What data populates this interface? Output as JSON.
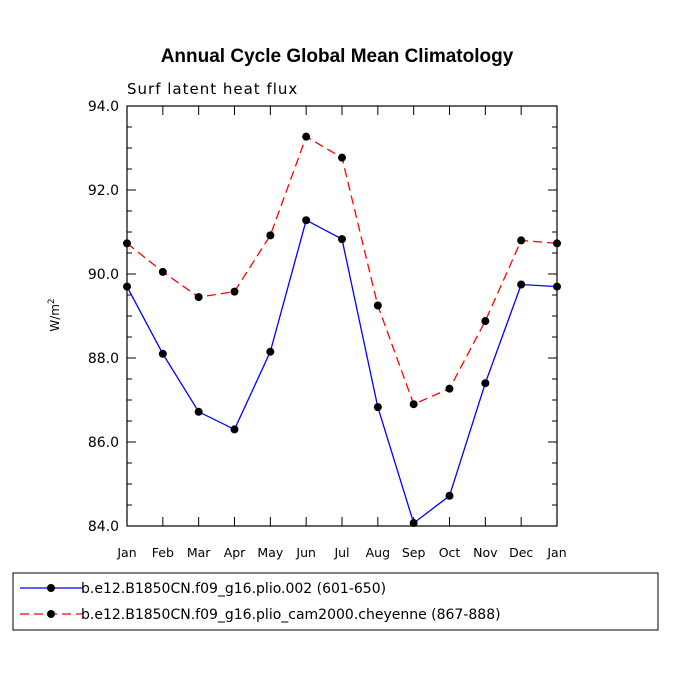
{
  "chart_data": {
    "type": "line",
    "title": "Annual Cycle Global Mean Climatology",
    "subtitle": "Surf latent heat flux",
    "ylabel": "W/m",
    "ylabel_exponent": "2",
    "xlabel": "",
    "categories": [
      "Jan",
      "Feb",
      "Mar",
      "Apr",
      "May",
      "Jun",
      "Jul",
      "Aug",
      "Sep",
      "Oct",
      "Nov",
      "Dec",
      "Jan"
    ],
    "ylim": [
      84.0,
      94.0
    ],
    "yticks": [
      "84.0",
      "86.0",
      "88.0",
      "90.0",
      "92.0",
      "94.0"
    ],
    "legend_position": "bottom",
    "series": [
      {
        "name": "b.e12.B1850CN.f09_g16.plio.002 (601-650)",
        "color": "#0000ff",
        "style": "solid",
        "values": [
          89.7,
          88.1,
          86.72,
          86.3,
          88.15,
          91.28,
          90.83,
          86.83,
          84.07,
          84.72,
          87.4,
          89.75,
          89.7
        ]
      },
      {
        "name": "b.e12.B1850CN.f09_g16.plio_cam2000.cheyenne (867-888)",
        "color": "#ff0000",
        "style": "dashed",
        "values": [
          90.73,
          90.05,
          89.45,
          89.58,
          90.92,
          93.27,
          92.77,
          89.25,
          86.9,
          87.27,
          88.88,
          90.8,
          90.73
        ]
      }
    ]
  }
}
